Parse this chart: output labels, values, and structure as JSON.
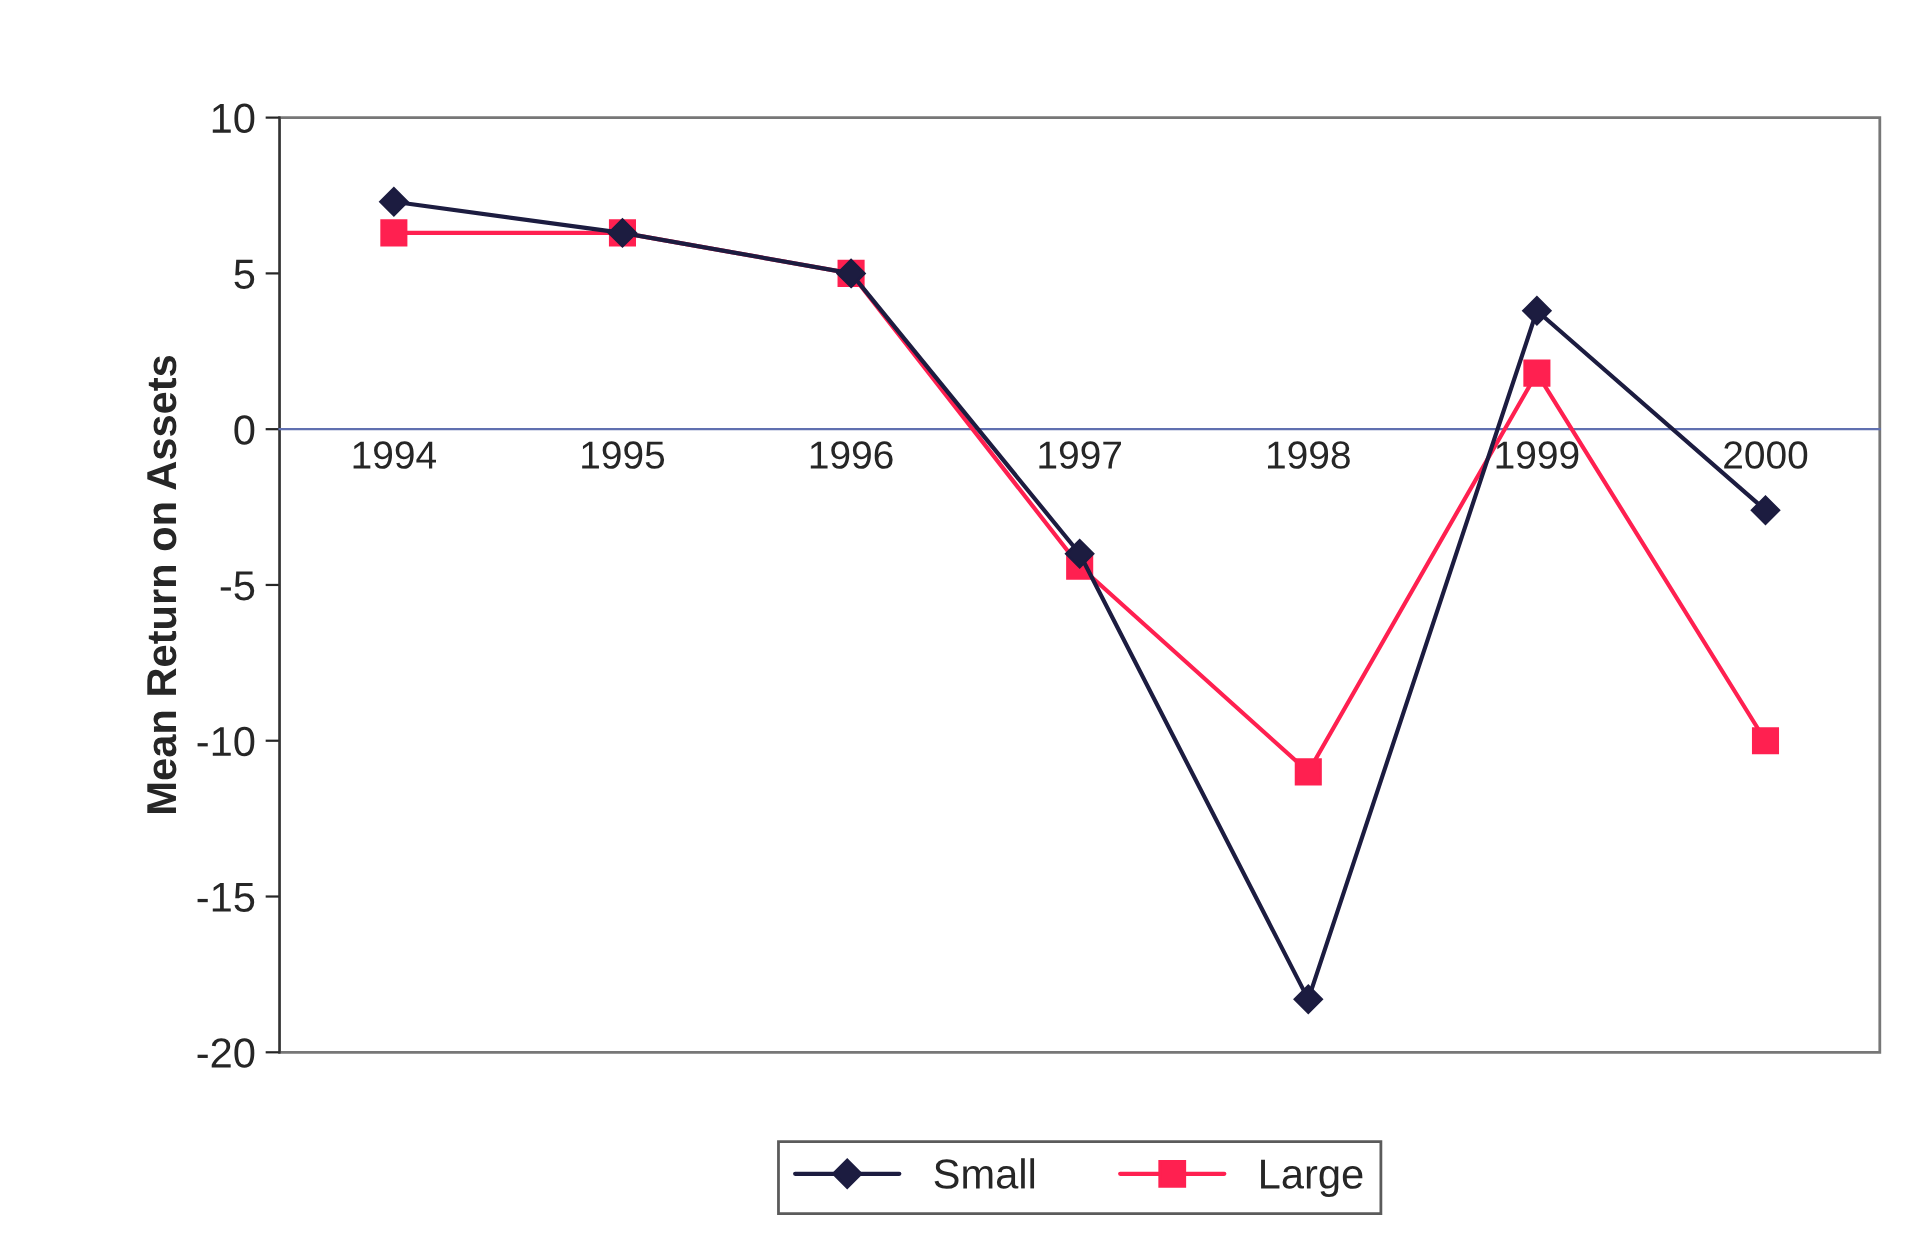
{
  "chart_data": {
    "type": "line",
    "ylabel": "Mean Return on Assets",
    "categories": [
      "1994",
      "1995",
      "1996",
      "1997",
      "1998",
      "1999",
      "2000"
    ],
    "series": [
      {
        "name": "Small",
        "color": "#1c1c40",
        "marker": "diamond",
        "values": [
          7.3,
          6.3,
          5.0,
          -4.0,
          -18.3,
          3.8,
          -2.6
        ]
      },
      {
        "name": "Large",
        "color": "#ff2050",
        "marker": "square",
        "values": [
          6.3,
          6.3,
          5.0,
          -4.4,
          -11.0,
          1.8,
          -10.0
        ]
      }
    ],
    "ylim": [
      -20,
      10
    ],
    "yticks": [
      -20,
      -15,
      -10,
      -5,
      0,
      5,
      10
    ],
    "grid": false,
    "legend": "bottom"
  }
}
